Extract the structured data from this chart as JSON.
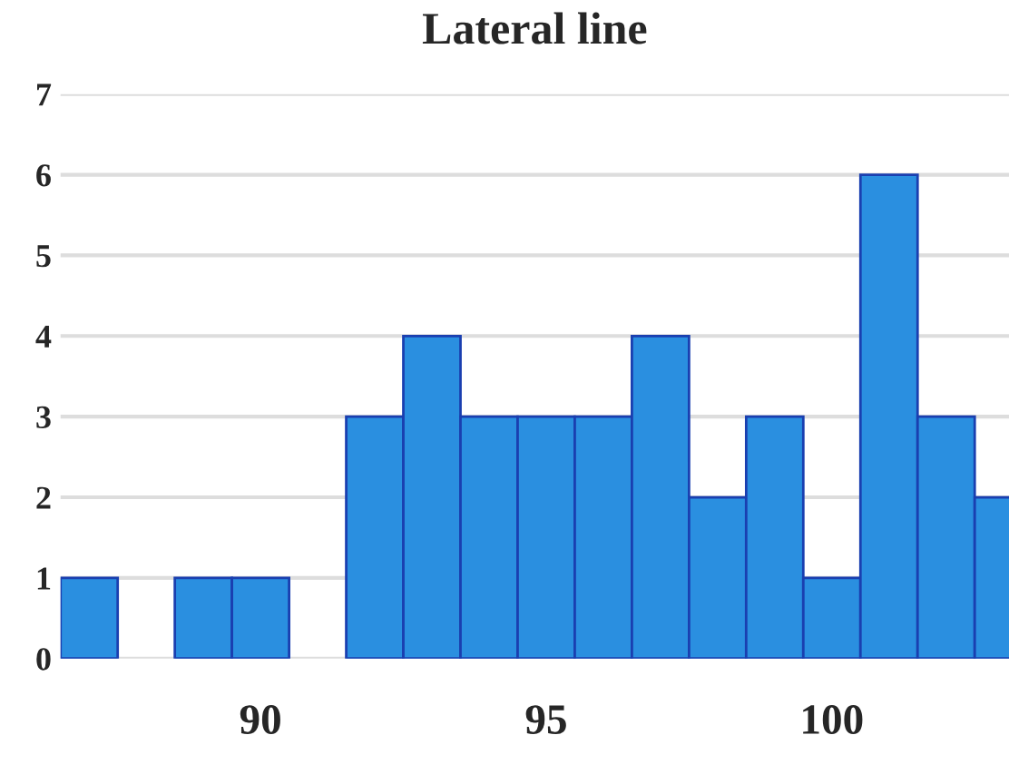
{
  "chart_data": {
    "type": "histogram",
    "title": "Lateral line",
    "bins": [
      86.5,
      87.5,
      88.5,
      89.5,
      90.5,
      91.5,
      92.5,
      93.5,
      94.5,
      95.5,
      96.5,
      97.5,
      98.5,
      99.5,
      100.5,
      101.5,
      102.5,
      103.5
    ],
    "values": [
      1,
      0,
      1,
      1,
      0,
      3,
      4,
      3,
      3,
      3,
      4,
      2,
      3,
      1,
      6,
      3,
      2
    ],
    "color": "#2a8fe0",
    "xlim": [
      86.5,
      103.1
    ],
    "xticks": [
      90,
      95,
      100
    ],
    "ylim": [
      0,
      7
    ],
    "yticks": [
      0,
      1,
      2,
      3,
      4,
      5,
      6,
      7
    ],
    "grid": "y"
  }
}
